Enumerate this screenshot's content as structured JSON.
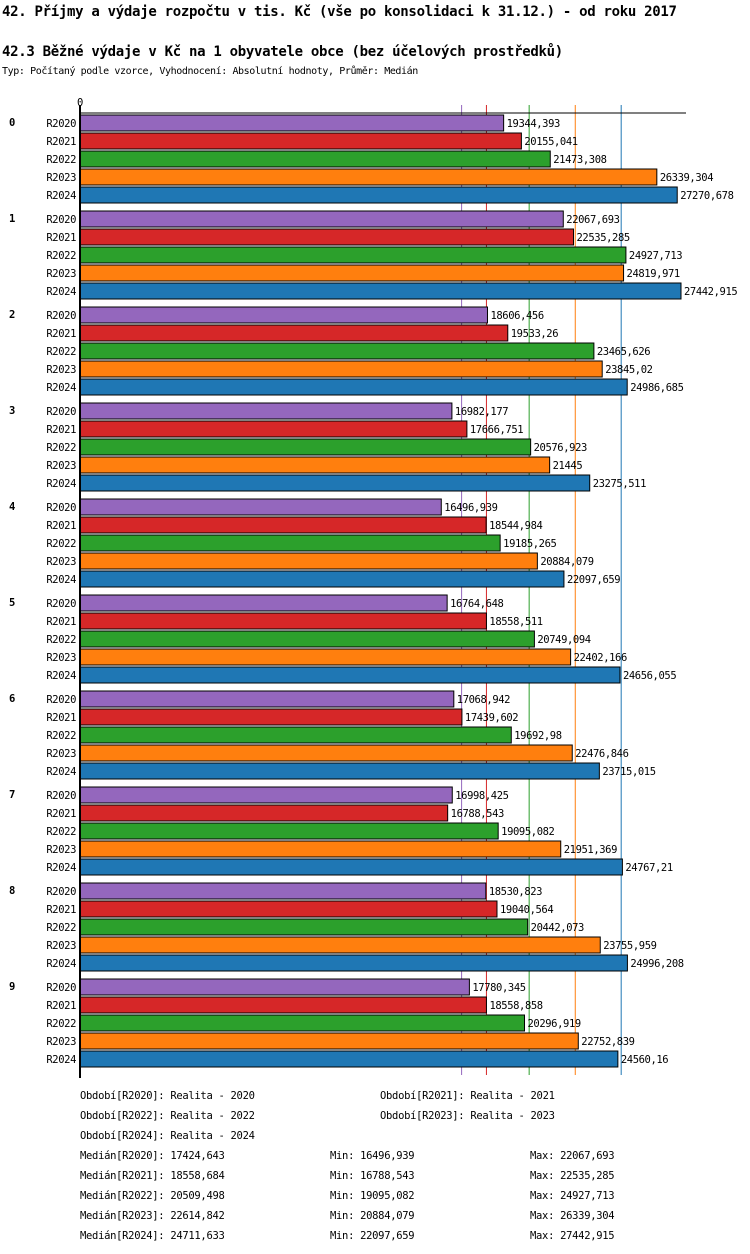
{
  "title": "42. Příjmy a výdaje rozpočtu v tis. Kč (vše po konsolidaci k 31.12.) - od roku 2017",
  "subtitle": "42.3 Běžné výdaje v Kč na 1 obyvatele obce (bez účelových prostředků)",
  "info": "Typ: Počítaný podle vzorce, Vyhodnocení: Absolutní hodnoty, Průměr: Medián",
  "chart_data": {
    "type": "bar",
    "orientation": "horizontal",
    "axis_zero_label": "0",
    "xlim": [
      0,
      27442.915
    ],
    "groups": [
      "0",
      "1",
      "2",
      "3",
      "4",
      "5",
      "6",
      "7",
      "8",
      "9"
    ],
    "series": [
      {
        "name": "R2020",
        "color": "#9467bd",
        "values": [
          19344.393,
          22067.693,
          18606.456,
          16982.177,
          16496.939,
          16764.648,
          17068.942,
          16998.425,
          18530.823,
          17780.345
        ],
        "labels": [
          "19344,393",
          "22067,693",
          "18606,456",
          "16982,177",
          "16496,939",
          "16764,648",
          "17068,942",
          "16998,425",
          "18530,823",
          "17780,345"
        ],
        "median": 17424.643
      },
      {
        "name": "R2021",
        "color": "#d62728",
        "values": [
          20155.041,
          22535.285,
          19533.26,
          17666.751,
          18544.984,
          18558.511,
          17439.602,
          16788.543,
          19040.564,
          18558.858
        ],
        "labels": [
          "20155,041",
          "22535,285",
          "19533,26",
          "17666,751",
          "18544,984",
          "18558,511",
          "17439,602",
          "16788,543",
          "19040,564",
          "18558,858"
        ],
        "median": 18558.684
      },
      {
        "name": "R2022",
        "color": "#2ca02c",
        "values": [
          21473.308,
          24927.713,
          23465.626,
          20576.923,
          19185.265,
          20749.094,
          19692.98,
          19095.082,
          20442.073,
          20296.919
        ],
        "labels": [
          "21473,308",
          "24927,713",
          "23465,626",
          "20576,923",
          "19185,265",
          "20749,094",
          "19692,98",
          "19095,082",
          "20442,073",
          "20296,919"
        ],
        "median": 20509.498
      },
      {
        "name": "R2023",
        "color": "#ff7f0e",
        "values": [
          26339.304,
          24819.971,
          23845.02,
          21445,
          20884.079,
          22402.166,
          22476.846,
          21951.369,
          23755.959,
          22752.839
        ],
        "labels": [
          "26339,304",
          "24819,971",
          "23845,02",
          "21445",
          "20884,079",
          "22402,166",
          "22476,846",
          "21951,369",
          "23755,959",
          "22752,839"
        ],
        "median": 22614.842
      },
      {
        "name": "R2024",
        "color": "#1f77b4",
        "values": [
          27270.678,
          27442.915,
          24986.685,
          23275.511,
          22097.659,
          24656.055,
          23715.015,
          24767.21,
          24996.208,
          24560.16
        ],
        "labels": [
          "27270,678",
          "27442,915",
          "24986,685",
          "23275,511",
          "22097,659",
          "24656,055",
          "23715,015",
          "24767,21",
          "24996,208",
          "24560,16"
        ],
        "median": 24711.633
      }
    ]
  },
  "legend": {
    "periods": [
      "Období[R2020]: Realita - 2020",
      "Období[R2021]: Realita - 2021",
      "Období[R2022]: Realita - 2022",
      "Období[R2023]: Realita - 2023",
      "Období[R2024]: Realita - 2024"
    ],
    "stats": [
      {
        "median": "Medián[R2020]: 17424,643",
        "min": "Min: 16496,939",
        "max": "Max: 22067,693"
      },
      {
        "median": "Medián[R2021]: 18558,684",
        "min": "Min: 16788,543",
        "max": "Max: 22535,285"
      },
      {
        "median": "Medián[R2022]: 20509,498",
        "min": "Min: 19095,082",
        "max": "Max: 24927,713"
      },
      {
        "median": "Medián[R2023]: 22614,842",
        "min": "Min: 20884,079",
        "max": "Max: 26339,304"
      },
      {
        "median": "Medián[R2024]: 24711,633",
        "min": "Min: 22097,659",
        "max": "Max: 27442,915"
      }
    ]
  }
}
